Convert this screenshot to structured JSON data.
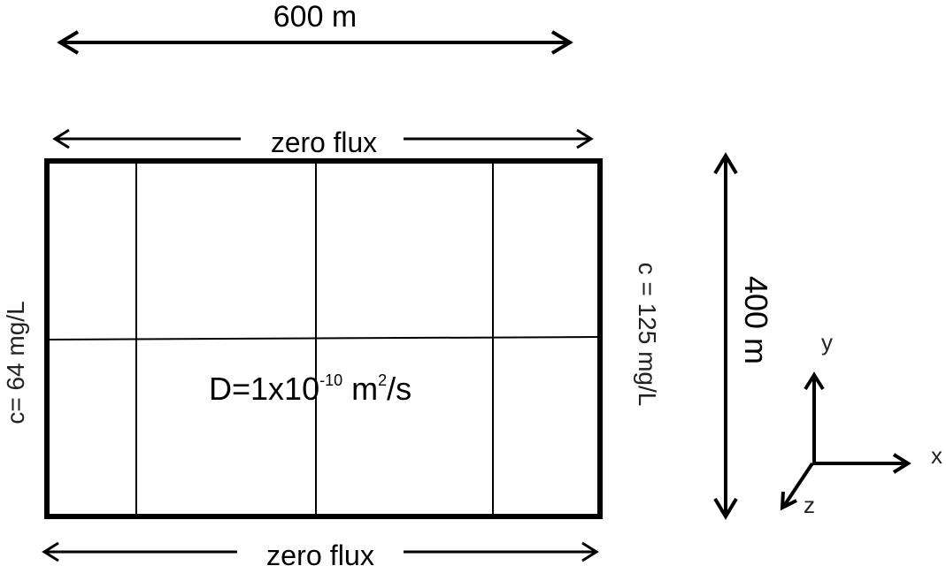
{
  "dimensions": {
    "width_label": "600 m",
    "height_label": "400 m"
  },
  "boundaries": {
    "top": "zero flux",
    "bottom": "zero flux",
    "left": "c= 64 mg/L",
    "right": "c = 125 mg/L"
  },
  "diffusion": {
    "prefix": "D=1x10",
    "exponent": "-10",
    "unit_base": " m",
    "unit_exp": "2",
    "unit_suffix": "/s"
  },
  "axes": {
    "x": "x",
    "y": "y",
    "z": "z"
  },
  "colors": {
    "stroke": "#000000",
    "text": "#000000"
  }
}
